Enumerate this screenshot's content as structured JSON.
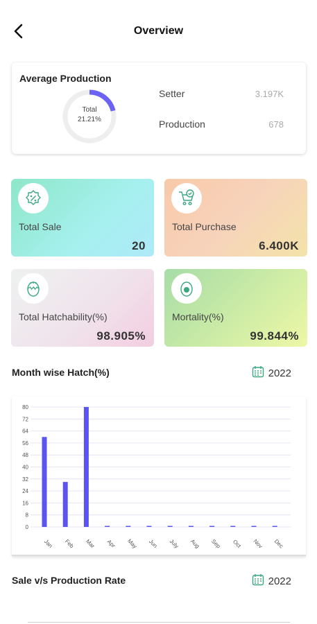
{
  "header": {
    "title": "Overview"
  },
  "average_production": {
    "title": "Average Production",
    "donut_label": "Total",
    "donut_value": "21.21%",
    "donut_fraction": 0.2121,
    "accent_color": "#6c63f5",
    "rows": [
      {
        "label": "Setter",
        "value": "3.197K"
      },
      {
        "label": "Production",
        "value": "678"
      }
    ]
  },
  "stats": {
    "sale": {
      "label": "Total Sale",
      "value": "20",
      "icon": "percent-tag-icon"
    },
    "purchase": {
      "label": "Total Purchase",
      "value": "6.400K",
      "icon": "shopping-cart-icon"
    },
    "hatchability": {
      "label": "Total Hatchability(%)",
      "value": "98.905%",
      "icon": "hatching-egg-icon"
    },
    "mortality": {
      "label": "Mortality(%)",
      "value": "99.844%",
      "icon": "egg-icon"
    }
  },
  "month_hatch": {
    "title": "Month wise Hatch(%)",
    "year": "2022",
    "icon": "calendar-icon"
  },
  "sale_vs_production": {
    "title": "Sale v/s Production Rate",
    "year": "2022",
    "icon": "calendar-icon"
  },
  "chart_data": {
    "type": "bar",
    "categories": [
      "Jan",
      "Feb",
      "Mar",
      "Apr",
      "May",
      "Jun",
      "July",
      "Aug",
      "Sep",
      "Oct",
      "Nov",
      "Dec"
    ],
    "values": [
      60,
      30,
      80,
      0,
      0,
      0,
      0,
      0,
      0,
      0,
      0,
      0
    ],
    "yticks": [
      0,
      8,
      16,
      24,
      32,
      40,
      48,
      56,
      64,
      72,
      80
    ],
    "ylim": [
      0,
      80
    ],
    "bar_color": "#5a55f0",
    "grid": true,
    "title": "",
    "xlabel": "",
    "ylabel": ""
  }
}
